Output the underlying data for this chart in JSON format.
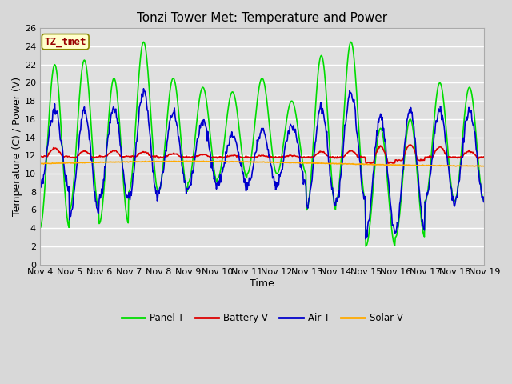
{
  "title": "Tonzi Tower Met: Temperature and Power",
  "xlabel": "Time",
  "ylabel": "Temperature (C) / Power (V)",
  "annotation": "TZ_tmet",
  "ylim": [
    0,
    26
  ],
  "xlim": [
    0,
    15
  ],
  "xtick_labels": [
    "Nov 4",
    "Nov 5",
    "Nov 6",
    "Nov 7",
    "Nov 8",
    "Nov 9",
    "Nov 10",
    "Nov 11",
    "Nov 12",
    "Nov 13",
    "Nov 14",
    "Nov 15",
    "Nov 16",
    "Nov 17",
    "Nov 18",
    "Nov 19"
  ],
  "xtick_positions": [
    0,
    1,
    2,
    3,
    4,
    5,
    6,
    7,
    8,
    9,
    10,
    11,
    12,
    13,
    14,
    15
  ],
  "ytick_positions": [
    0,
    2,
    4,
    6,
    8,
    10,
    12,
    14,
    16,
    18,
    20,
    22,
    24,
    26
  ],
  "legend_labels": [
    "Panel T",
    "Battery V",
    "Air T",
    "Solar V"
  ],
  "panel_color": "#00dd00",
  "battery_color": "#dd0000",
  "air_color": "#0000cc",
  "solar_color": "#ffaa00",
  "bg_color": "#d8d8d8",
  "plot_bg_color": "#e0e0e0",
  "annotation_bg": "#ffffcc",
  "annotation_border": "#888800",
  "annotation_text_color": "#990000",
  "grid_color": "#ffffff",
  "title_fontsize": 11,
  "axis_fontsize": 9,
  "tick_fontsize": 8,
  "linewidth": 1.2
}
